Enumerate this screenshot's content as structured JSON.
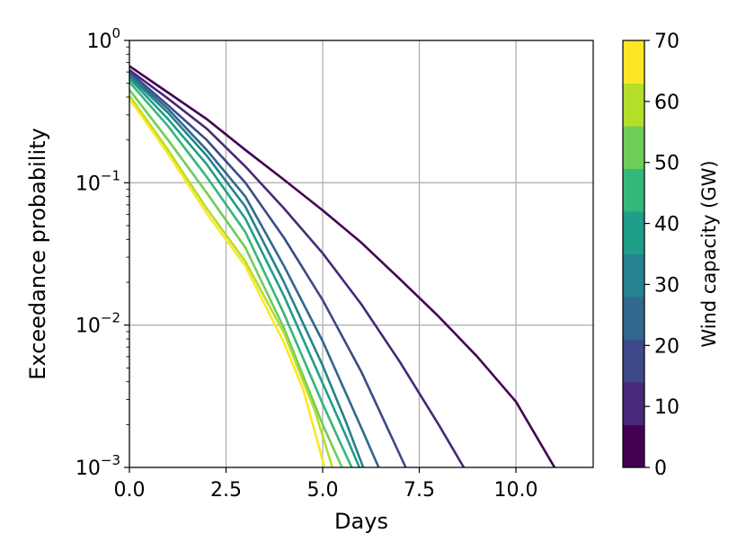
{
  "chart_data": {
    "type": "line",
    "title": "",
    "xlabel": "Days",
    "ylabel": "Exceedance probability",
    "x_scale": "linear",
    "y_scale": "log",
    "xlim": [
      0,
      12
    ],
    "ylim": [
      0.001,
      1
    ],
    "grid": true,
    "x_ticks": [
      0,
      2.5,
      5,
      7.5,
      10
    ],
    "x_tick_labels": [
      "0.0",
      "2.5",
      "5.0",
      "7.5",
      "10.0"
    ],
    "y_ticks": [
      0.001,
      0.01,
      0.1,
      1
    ],
    "y_tick_labels": [
      {
        "base": "10",
        "exp": "−3"
      },
      {
        "base": "10",
        "exp": "−2"
      },
      {
        "base": "10",
        "exp": "−1"
      },
      {
        "base": "10",
        "exp": "0"
      }
    ],
    "colormap": "viridis",
    "colorbar": {
      "label": "Wind capacity (GW)",
      "range": [
        0,
        70
      ],
      "ticks": [
        0,
        10,
        20,
        30,
        40,
        50,
        60,
        70
      ],
      "tick_labels": [
        "0",
        "10",
        "20",
        "30",
        "40",
        "50",
        "60",
        "70"
      ],
      "bands": [
        "#440154",
        "#482878",
        "#3e4989",
        "#31688e",
        "#26828e",
        "#1f9e89",
        "#35b779",
        "#6ece58",
        "#b5de2b",
        "#fde725"
      ]
    },
    "series": [
      {
        "capacity": 0,
        "color": "#440154",
        "x": [
          0,
          1,
          2,
          3,
          4,
          5,
          6,
          7,
          8,
          9,
          10,
          11
        ],
        "y": [
          0.66,
          0.43,
          0.28,
          0.17,
          0.105,
          0.064,
          0.038,
          0.021,
          0.0115,
          0.006,
          0.0029,
          0.001
        ]
      },
      {
        "capacity": 10,
        "color": "#482878",
        "x": [
          0,
          1,
          2,
          3,
          4,
          5,
          6,
          7,
          8,
          8.65
        ],
        "y": [
          0.62,
          0.39,
          0.24,
          0.13,
          0.066,
          0.032,
          0.014,
          0.0055,
          0.002,
          0.001
        ]
      },
      {
        "capacity": 20,
        "color": "#3e4989",
        "x": [
          0,
          1,
          2,
          3,
          4,
          5,
          6,
          7.15
        ],
        "y": [
          0.6,
          0.35,
          0.2,
          0.1,
          0.041,
          0.015,
          0.0047,
          0.001
        ]
      },
      {
        "capacity": 30,
        "color": "#31688e",
        "x": [
          0,
          1,
          2,
          3,
          4,
          5,
          6,
          6.45
        ],
        "y": [
          0.58,
          0.33,
          0.17,
          0.08,
          0.026,
          0.0077,
          0.0019,
          0.001
        ]
      },
      {
        "capacity": 40,
        "color": "#26828e",
        "x": [
          0,
          1,
          2,
          3,
          4,
          5,
          5.6,
          6.05
        ],
        "y": [
          0.56,
          0.31,
          0.155,
          0.068,
          0.02,
          0.0052,
          0.0021,
          0.001
        ]
      },
      {
        "capacity": 50,
        "color": "#1f9e89",
        "x": [
          0,
          1,
          2,
          3,
          4,
          5,
          5.55,
          5.95
        ],
        "y": [
          0.54,
          0.28,
          0.135,
          0.056,
          0.016,
          0.0039,
          0.0018,
          0.001
        ]
      },
      {
        "capacity": 55,
        "color": "#35b779",
        "x": [
          0,
          1,
          2,
          3,
          4,
          5,
          5.45,
          5.75
        ],
        "y": [
          0.51,
          0.25,
          0.11,
          0.045,
          0.012,
          0.0028,
          0.0015,
          0.001
        ]
      },
      {
        "capacity": 60,
        "color": "#6ece58",
        "x": [
          0,
          1,
          2,
          3,
          4,
          5,
          5.5
        ],
        "y": [
          0.45,
          0.2,
          0.085,
          0.035,
          0.0095,
          0.002,
          0.001
        ]
      },
      {
        "capacity": 65,
        "color": "#b5de2b",
        "x": [
          0,
          1,
          2,
          3,
          4,
          4.8,
          5.25
        ],
        "y": [
          0.41,
          0.17,
          0.066,
          0.028,
          0.0088,
          0.0025,
          0.001
        ]
      },
      {
        "capacity": 70,
        "color": "#fde725",
        "x": [
          0,
          1,
          2,
          3,
          4,
          4.5,
          5.05
        ],
        "y": [
          0.39,
          0.16,
          0.061,
          0.026,
          0.0075,
          0.0035,
          0.001
        ]
      }
    ]
  }
}
